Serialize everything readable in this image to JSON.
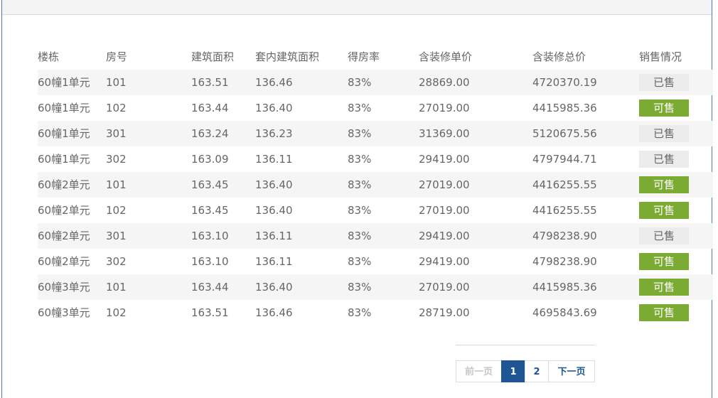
{
  "table": {
    "headers": [
      "楼栋",
      "房号",
      "建筑面积",
      "套内建筑面积",
      "得房率",
      "含装修单价",
      "含装修总价",
      "销售情况"
    ],
    "rows": [
      {
        "building": "60幢1单元",
        "room": "101",
        "area": "163.51",
        "inner_area": "136.46",
        "rate": "83%",
        "unit_price": "28869.00",
        "total_price": "4720370.19",
        "status": "已售",
        "available": false
      },
      {
        "building": "60幢1单元",
        "room": "102",
        "area": "163.44",
        "inner_area": "136.40",
        "rate": "83%",
        "unit_price": "27019.00",
        "total_price": "4415985.36",
        "status": "可售",
        "available": true
      },
      {
        "building": "60幢1单元",
        "room": "301",
        "area": "163.24",
        "inner_area": "136.23",
        "rate": "83%",
        "unit_price": "31369.00",
        "total_price": "5120675.56",
        "status": "已售",
        "available": false
      },
      {
        "building": "60幢1单元",
        "room": "302",
        "area": "163.09",
        "inner_area": "136.11",
        "rate": "83%",
        "unit_price": "29419.00",
        "total_price": "4797944.71",
        "status": "已售",
        "available": false
      },
      {
        "building": "60幢2单元",
        "room": "101",
        "area": "163.45",
        "inner_area": "136.40",
        "rate": "83%",
        "unit_price": "27019.00",
        "total_price": "4416255.55",
        "status": "可售",
        "available": true
      },
      {
        "building": "60幢2单元",
        "room": "102",
        "area": "163.45",
        "inner_area": "136.40",
        "rate": "83%",
        "unit_price": "27019.00",
        "total_price": "4416255.55",
        "status": "可售",
        "available": true
      },
      {
        "building": "60幢2单元",
        "room": "301",
        "area": "163.10",
        "inner_area": "136.11",
        "rate": "83%",
        "unit_price": "29419.00",
        "total_price": "4798238.90",
        "status": "已售",
        "available": false
      },
      {
        "building": "60幢2单元",
        "room": "302",
        "area": "163.10",
        "inner_area": "136.11",
        "rate": "83%",
        "unit_price": "29419.00",
        "total_price": "4798238.90",
        "status": "可售",
        "available": true
      },
      {
        "building": "60幢3单元",
        "room": "101",
        "area": "163.44",
        "inner_area": "136.40",
        "rate": "83%",
        "unit_price": "27019.00",
        "total_price": "4415985.36",
        "status": "可售",
        "available": true
      },
      {
        "building": "60幢3单元",
        "room": "102",
        "area": "163.51",
        "inner_area": "136.46",
        "rate": "83%",
        "unit_price": "28719.00",
        "total_price": "4695843.69",
        "status": "可售",
        "available": true
      }
    ]
  },
  "pagination": {
    "prev_label": "前一页",
    "pages": [
      "1",
      "2"
    ],
    "current_page": "1",
    "next_label": "下一页"
  },
  "colors": {
    "available": "#7cab34",
    "sold": "#ececec",
    "pager_active": "#1f5592",
    "frame_border": "#4a7ab5"
  }
}
